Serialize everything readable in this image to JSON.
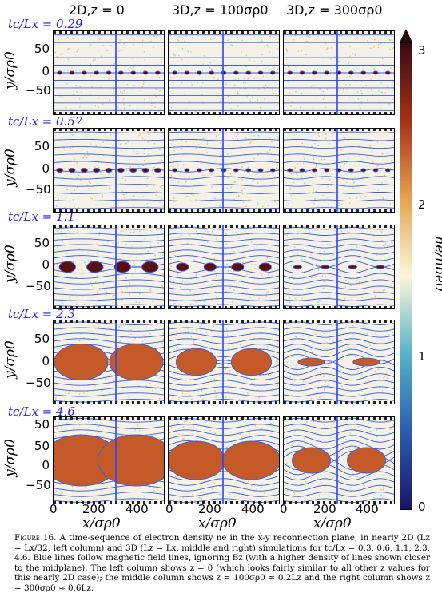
{
  "columns": [
    "2D,z = 0",
    "3D,z = 100σρ0",
    "3D,z = 300σρ0"
  ],
  "rows": [
    {
      "label": "tc/Lx = 0.29"
    },
    {
      "label": "tc/Lx = 0.57"
    },
    {
      "label": "tc/Lx = 1.1"
    },
    {
      "label": "tc/Lx = 2.3"
    },
    {
      "label": "tc/Lx = 4.6"
    }
  ],
  "y_axis": {
    "label": "y/σρ0",
    "ticks_small": [
      "50",
      "0",
      "−50"
    ],
    "ticks_large": [
      "50",
      "0",
      "−50"
    ],
    "tick_top_last": "50"
  },
  "x_axis": {
    "label": "x/σρ0",
    "ticks": [
      "0",
      "200",
      "400"
    ]
  },
  "colorbar": {
    "label": "ne/nbe0",
    "ticks": [
      "3",
      "2",
      "1",
      "0"
    ],
    "colors": [
      "#1a1466",
      "#2a5fae",
      "#56b1c8",
      "#fbf7d9",
      "#e3a14f",
      "#a7331a",
      "#3a0a12"
    ]
  },
  "caption": {
    "lead": "Figure 16.",
    "text": "A time-sequence of electron density ne in the x-y reconnection plane, in nearly 2D (Lz = Lx/32, left column) and 3D (Lz = Lx, middle and right) simulations for tc/Lx = 0.3, 0.6, 1.1, 2.3, 4.6. Blue lines follow magnetic field lines, ignoring Bz (with a higher density of lines shown closer to the midplane). The left column shows z = 0 (which looks fairly similar to all other z values for this nearly 2D case); the middle column shows z = 100σρ0 ≈ 0.2Lz and the right column shows z = 300σρ0 ≈ 0.6Lz."
  }
}
